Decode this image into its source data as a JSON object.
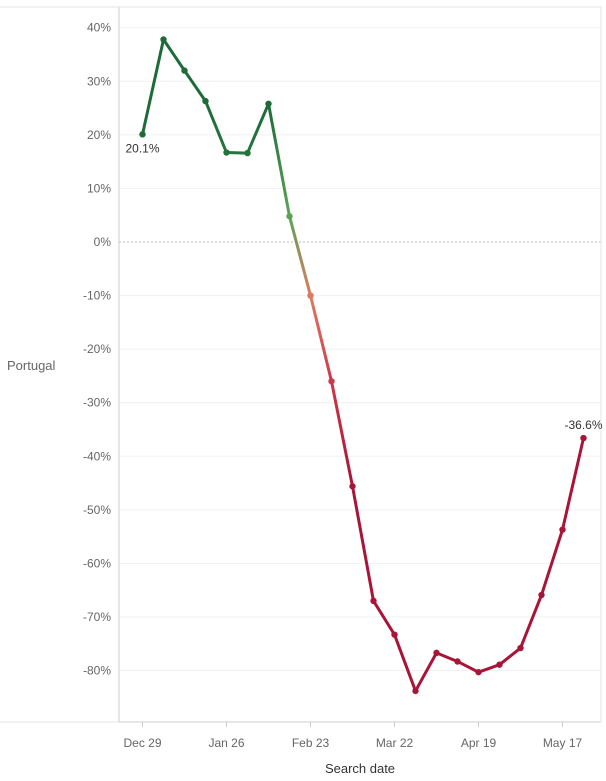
{
  "chart_data": {
    "type": "line",
    "row_label": "Portugal",
    "xlabel": "Search date",
    "ylabel": "",
    "x_tick_labels": [
      {
        "date": "2019-12-29",
        "label": "Dec 29"
      },
      {
        "date": "2020-01-26",
        "label": "Jan 26"
      },
      {
        "date": "2020-02-23",
        "label": "Feb 23"
      },
      {
        "date": "2020-03-22",
        "label": "Mar 22"
      },
      {
        "date": "2020-04-19",
        "label": "Apr 19"
      },
      {
        "date": "2020-05-17",
        "label": "May 17"
      }
    ],
    "xlim": [
      "2019-12-15",
      "2020-06-07"
    ],
    "ylim": [
      -90,
      42
    ],
    "y_ticks": [
      40,
      30,
      20,
      10,
      0,
      -10,
      -20,
      -30,
      -40,
      -50,
      -60,
      -70,
      -80
    ],
    "y_tick_format": "percent",
    "zero_reference_line": true,
    "series": [
      {
        "x": [
          "2019-12-29",
          "2020-01-05",
          "2020-01-12",
          "2020-01-19",
          "2020-01-26",
          "2020-02-02",
          "2020-02-09",
          "2020-02-16",
          "2020-02-23",
          "2020-03-01",
          "2020-03-08",
          "2020-03-15",
          "2020-03-22",
          "2020-03-29",
          "2020-04-05",
          "2020-04-12",
          "2020-04-19",
          "2020-04-26",
          "2020-05-03",
          "2020-05-10",
          "2020-05-17",
          "2020-05-24"
        ],
        "values": [
          20.1,
          37.8,
          32.0,
          26.3,
          16.7,
          16.6,
          25.8,
          4.8,
          -10.0,
          -26.0,
          -45.6,
          -67.0,
          -73.3,
          -83.8,
          -76.7,
          -78.3,
          -80.3,
          -78.9,
          -75.8,
          -65.9,
          -53.7,
          -36.6
        ]
      }
    ],
    "point_labels": [
      {
        "index": 0,
        "text": "20.1%"
      },
      {
        "index": 21,
        "text": "-36.6%"
      }
    ],
    "colors": {
      "positive_dark": "#1e6b3a",
      "positive_mid": "#3a8a44",
      "positive_light": "#8ccb72",
      "negative_light": "#f06a5c",
      "negative_mid": "#c42a44",
      "negative_dark": "#a81539",
      "zero_point": "#8ccb72",
      "reference_line": "#bbbbbb",
      "gridline": "#f0f0f0",
      "axis": "#cccccc"
    }
  }
}
